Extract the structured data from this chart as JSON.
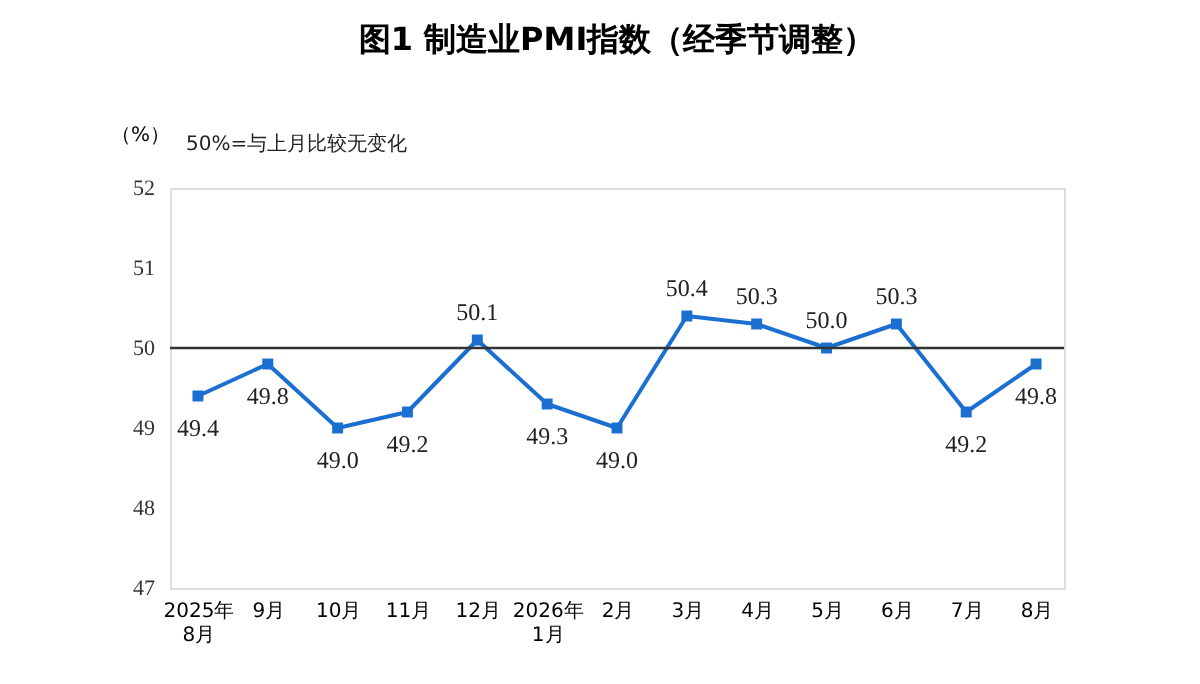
{
  "chart_data": {
    "type": "line",
    "title": "图1 制造业PMI指数（经季节调整）",
    "ylabel": "（%）",
    "annotations": [
      "50%=与上月比较无变化"
    ],
    "categories": [
      "2025年\n8月",
      "9月",
      "10月",
      "11月",
      "12月",
      "2026年\n1月",
      "2月",
      "3月",
      "4月",
      "5月",
      "6月",
      "7月",
      "8月"
    ],
    "series": [
      {
        "color": "#1a6fd1",
        "values": [
          49.4,
          49.8,
          49.0,
          49.2,
          50.1,
          49.3,
          49.0,
          50.4,
          50.3,
          50.0,
          50.3,
          49.2,
          49.8
        ],
        "value_labels": [
          "49.4",
          "49.8",
          "49.0",
          "49.2",
          "50.1",
          "49.3",
          "49.0",
          "50.4",
          "50.3",
          "50.0",
          "50.3",
          "49.2",
          "49.8"
        ]
      }
    ],
    "ylim": [
      47,
      52
    ],
    "yticks": [
      47,
      48,
      49,
      50,
      51,
      52
    ],
    "grid": false,
    "marker": "square",
    "line_style": "solid",
    "ref_lines": [
      {
        "axis": "y",
        "value": 50,
        "color": "#333333"
      }
    ]
  }
}
